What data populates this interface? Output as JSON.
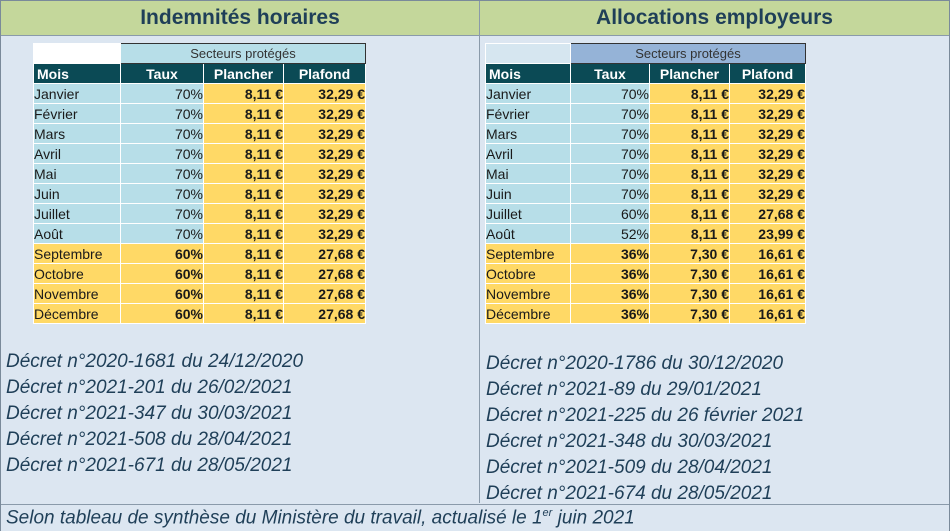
{
  "left": {
    "title": "Indemnités horaires",
    "sector_label": "Secteurs protégés",
    "headers": [
      "Mois",
      "Taux",
      "Plancher",
      "Plafond"
    ],
    "rows": [
      {
        "month": "Janvier",
        "rate": "70%",
        "floor": "8,11 €",
        "cap": "32,29 €",
        "hl": false
      },
      {
        "month": "Février",
        "rate": "70%",
        "floor": "8,11 €",
        "cap": "32,29 €",
        "hl": false
      },
      {
        "month": "Mars",
        "rate": "70%",
        "floor": "8,11 €",
        "cap": "32,29 €",
        "hl": false
      },
      {
        "month": "Avril",
        "rate": "70%",
        "floor": "8,11 €",
        "cap": "32,29 €",
        "hl": false
      },
      {
        "month": "Mai",
        "rate": "70%",
        "floor": "8,11 €",
        "cap": "32,29 €",
        "hl": false
      },
      {
        "month": "Juin",
        "rate": "70%",
        "floor": "8,11 €",
        "cap": "32,29 €",
        "hl": false
      },
      {
        "month": "Juillet",
        "rate": "70%",
        "floor": "8,11 €",
        "cap": "32,29 €",
        "hl": false
      },
      {
        "month": "Août",
        "rate": "70%",
        "floor": "8,11 €",
        "cap": "32,29 €",
        "hl": false
      },
      {
        "month": "Septembre",
        "rate": "60%",
        "floor": "8,11 €",
        "cap": "27,68 €",
        "hl": true
      },
      {
        "month": "Octobre",
        "rate": "60%",
        "floor": "8,11 €",
        "cap": "27,68 €",
        "hl": true
      },
      {
        "month": "Novembre",
        "rate": "60%",
        "floor": "8,11 €",
        "cap": "27,68 €",
        "hl": true
      },
      {
        "month": "Décembre",
        "rate": "60%",
        "floor": "8,11 €",
        "cap": "27,68 €",
        "hl": true
      }
    ],
    "decrees": [
      "Décret n°2020-1681 du 24/12/2020",
      "Décret n°2021-201 du 26/02/2021",
      "Décret n°2021-347 du 30/03/2021",
      "Décret n°2021-508 du 28/04/2021",
      "Décret n°2021-671 du 28/05/2021"
    ]
  },
  "right": {
    "title": "Allocations employeurs",
    "sector_label": "Secteurs protégés",
    "headers": [
      "Mois",
      "Taux",
      "Plancher",
      "Plafond"
    ],
    "rows": [
      {
        "month": "Janvier",
        "rate": "70%",
        "floor": "8,11 €",
        "cap": "32,29 €",
        "hl": false
      },
      {
        "month": "Février",
        "rate": "70%",
        "floor": "8,11 €",
        "cap": "32,29 €",
        "hl": false
      },
      {
        "month": "Mars",
        "rate": "70%",
        "floor": "8,11 €",
        "cap": "32,29 €",
        "hl": false
      },
      {
        "month": "Avril",
        "rate": "70%",
        "floor": "8,11 €",
        "cap": "32,29 €",
        "hl": false
      },
      {
        "month": "Mai",
        "rate": "70%",
        "floor": "8,11 €",
        "cap": "32,29 €",
        "hl": false
      },
      {
        "month": "Juin",
        "rate": "70%",
        "floor": "8,11 €",
        "cap": "32,29 €",
        "hl": false
      },
      {
        "month": "Juillet",
        "rate": "60%",
        "floor": "8,11 €",
        "cap": "27,68 €",
        "hl": false
      },
      {
        "month": "Août",
        "rate": "52%",
        "floor": "8,11 €",
        "cap": "23,99 €",
        "hl": false
      },
      {
        "month": "Septembre",
        "rate": "36%",
        "floor": "7,30 €",
        "cap": "16,61 €",
        "hl": true
      },
      {
        "month": "Octobre",
        "rate": "36%",
        "floor": "7,30 €",
        "cap": "16,61 €",
        "hl": true
      },
      {
        "month": "Novembre",
        "rate": "36%",
        "floor": "7,30 €",
        "cap": "16,61 €",
        "hl": true
      },
      {
        "month": "Décembre",
        "rate": "36%",
        "floor": "7,30 €",
        "cap": "16,61 €",
        "hl": true
      }
    ],
    "decrees": [
      "Décret n°2020-1786 du 30/12/2020",
      "Décret n°2021-89 du 29/01/2021",
      "Décret n°2021-225 du 26 février 2021",
      "Décret n°2021-348 du 30/03/2021",
      "Décret n°2021-509 du 28/04/2021",
      "Décret n°2021-674 du 28/05/2021"
    ]
  },
  "footer": {
    "text": "Selon tableau de synthèse du Ministère du travail, actualisé le 1",
    "sup": "er",
    "text_end": " juin 2021"
  }
}
